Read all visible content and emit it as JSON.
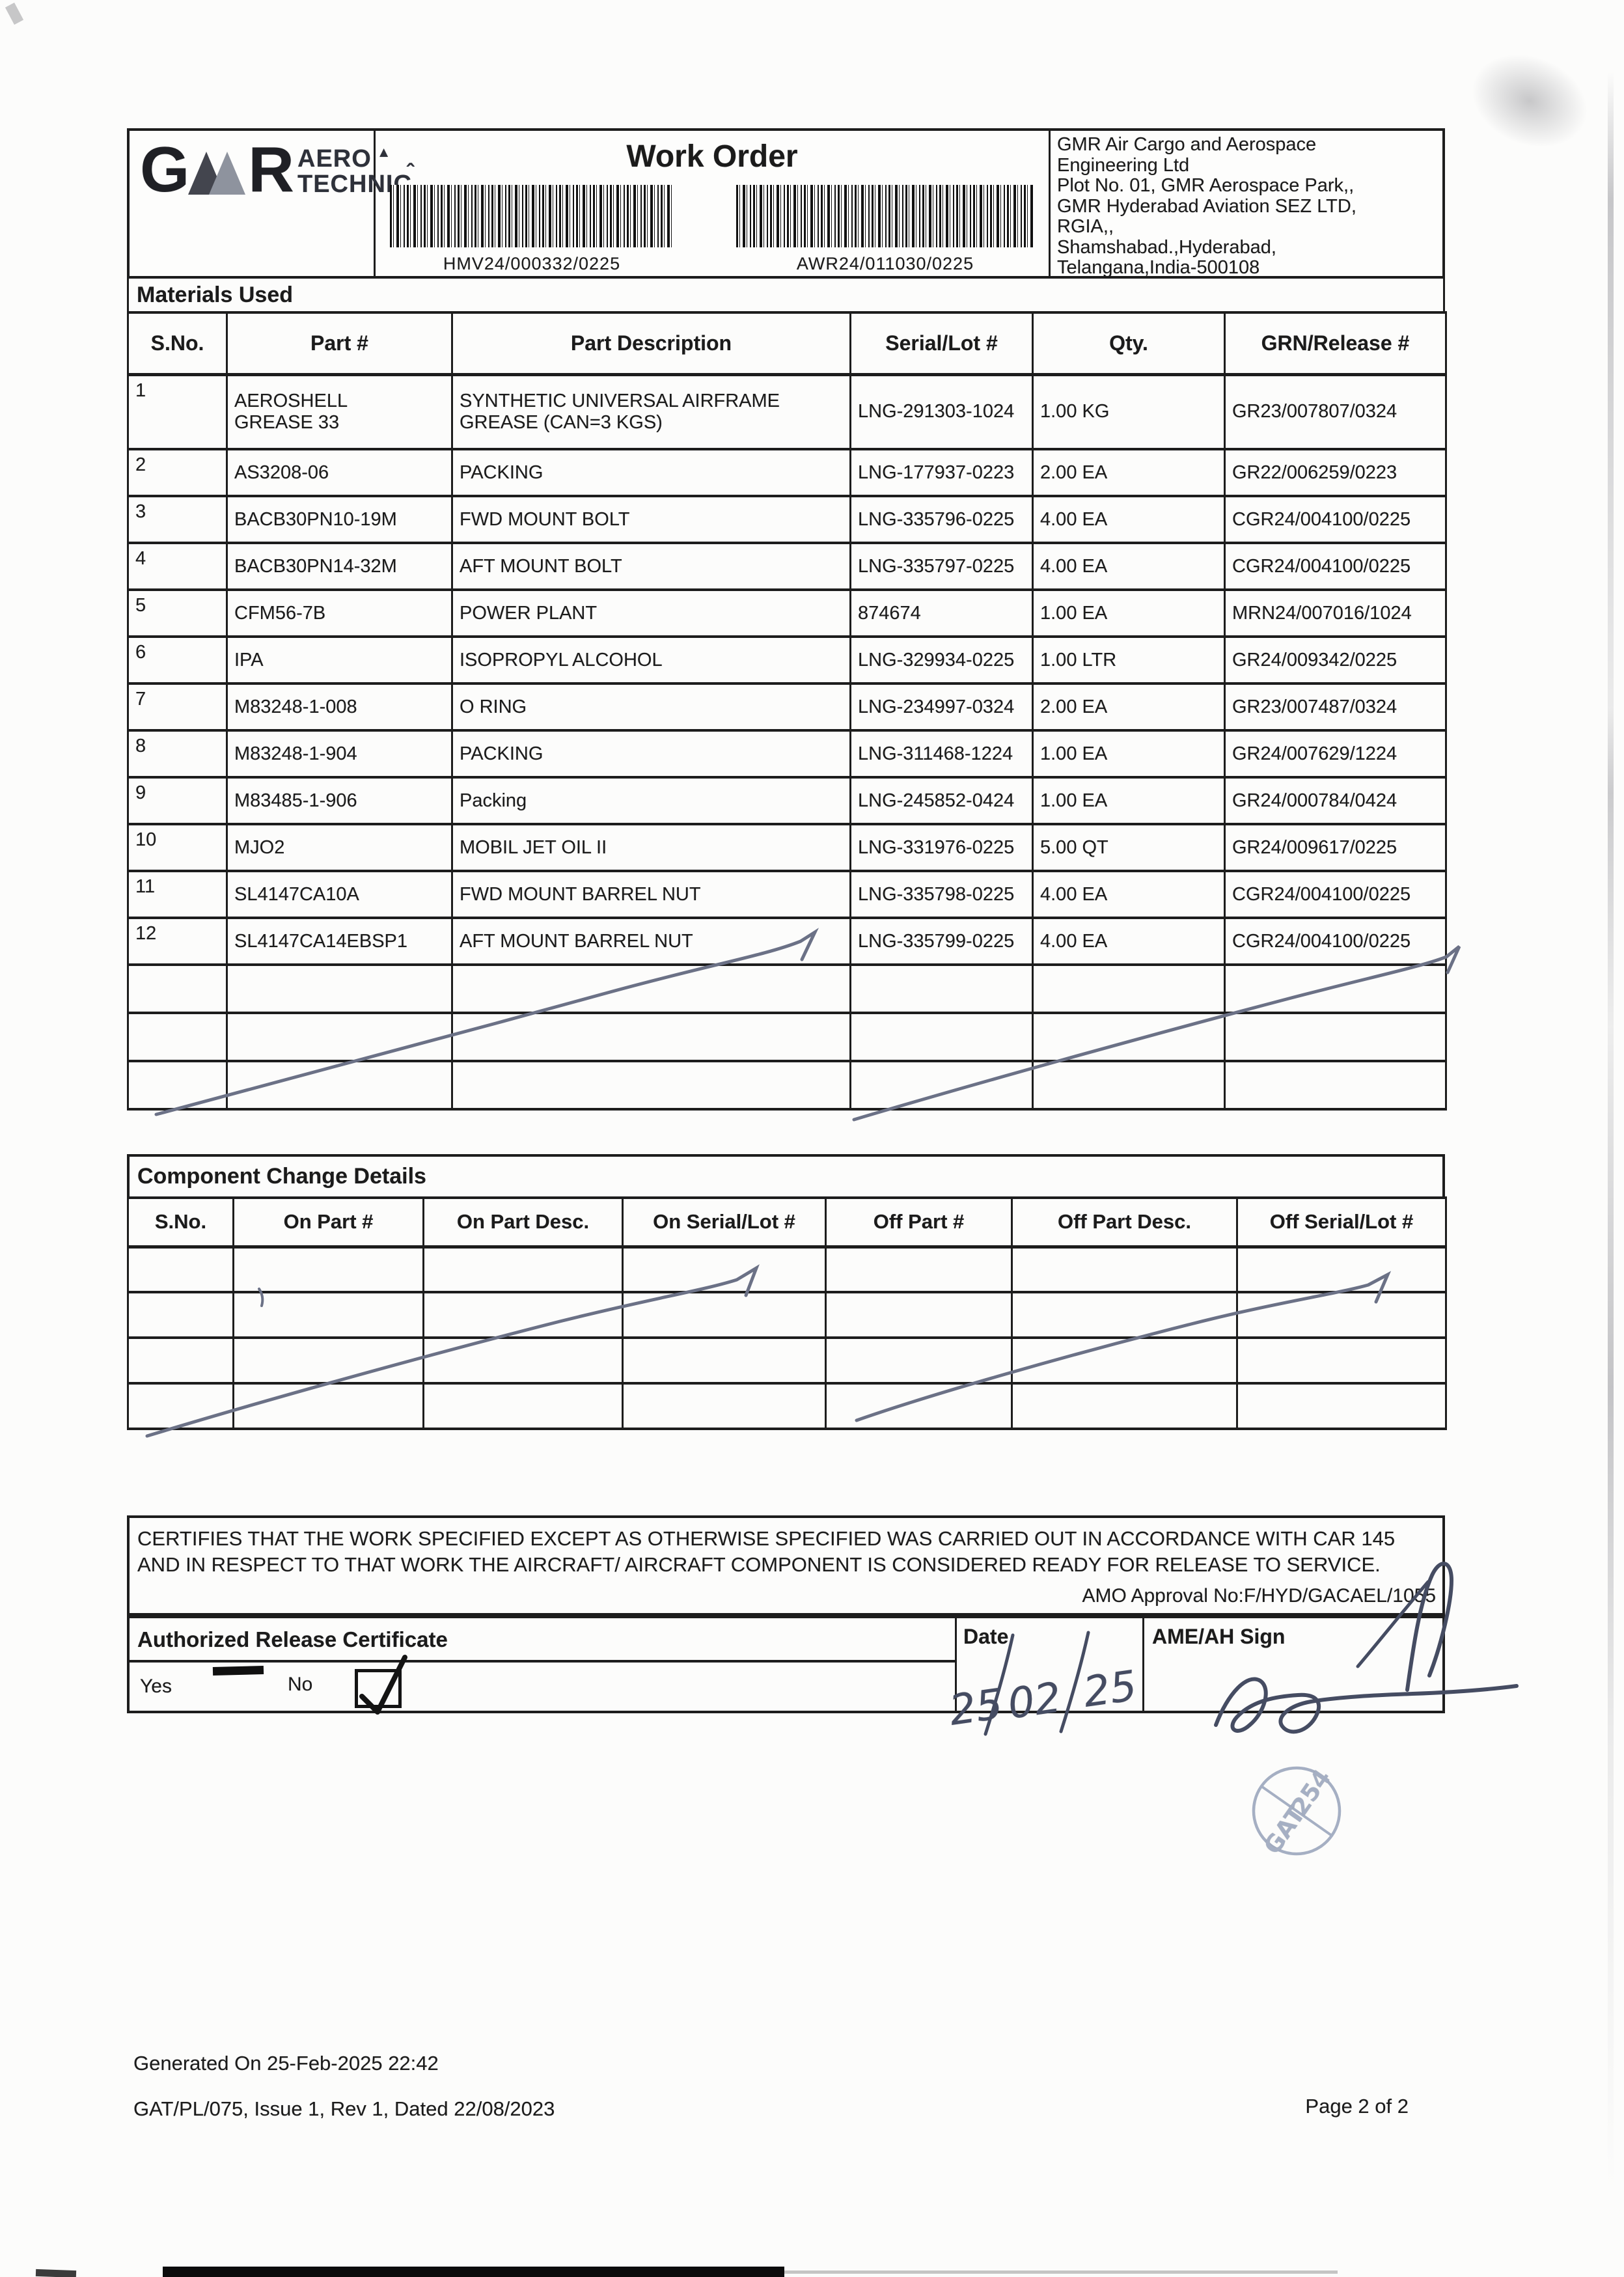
{
  "header": {
    "logo": {
      "gmr": "GMR",
      "aero": "AERO",
      "technic": "TECHNIC"
    },
    "title": "Work Order",
    "barcode1_label": "HMV24/000332/0225",
    "barcode2_label": "AWR24/011030/0225",
    "address_lines": [
      "GMR Air Cargo and Aerospace",
      "Engineering Ltd",
      "Plot No. 01, GMR Aerospace Park,,",
      "GMR Hyderabad Aviation SEZ LTD,",
      "RGIA,,",
      "Shamshabad.,Hyderabad,",
      "Telangana,India-500108"
    ]
  },
  "materials": {
    "section_title": "Materials Used",
    "columns": [
      "S.No.",
      "Part #",
      "Part Description",
      "Serial/Lot #",
      "Qty.",
      "GRN/Release #"
    ],
    "rows": [
      [
        "1",
        "AEROSHELL GREASE 33",
        "SYNTHETIC UNIVERSAL AIRFRAME GREASE (CAN=3 KGS)",
        "LNG-291303-1024",
        "1.00 KG",
        "GR23/007807/0324"
      ],
      [
        "2",
        "AS3208-06",
        "PACKING",
        "LNG-177937-0223",
        "2.00 EA",
        "GR22/006259/0223"
      ],
      [
        "3",
        "BACB30PN10-19M",
        "FWD MOUNT BOLT",
        "LNG-335796-0225",
        "4.00 EA",
        "CGR24/004100/0225"
      ],
      [
        "4",
        "BACB30PN14-32M",
        "AFT MOUNT BOLT",
        "LNG-335797-0225",
        "4.00 EA",
        "CGR24/004100/0225"
      ],
      [
        "5",
        "CFM56-7B",
        "POWER PLANT",
        "874674",
        "1.00 EA",
        "MRN24/007016/1024"
      ],
      [
        "6",
        "IPA",
        "ISOPROPYL ALCOHOL",
        "LNG-329934-0225",
        "1.00 LTR",
        "GR24/009342/0225"
      ],
      [
        "7",
        "M83248-1-008",
        "O RING",
        "LNG-234997-0324",
        "2.00 EA",
        "GR23/007487/0324"
      ],
      [
        "8",
        "M83248-1-904",
        "PACKING",
        "LNG-311468-1224",
        "1.00 EA",
        "GR24/007629/1224"
      ],
      [
        "9",
        "M83485-1-906",
        "Packing",
        "LNG-245852-0424",
        "1.00 EA",
        "GR24/000784/0424"
      ],
      [
        "10",
        "MJO2",
        "MOBIL JET OIL II",
        "LNG-331976-0225",
        "5.00 QT",
        "GR24/009617/0225"
      ],
      [
        "11",
        "SL4147CA10A",
        "FWD MOUNT BARREL NUT",
        "LNG-335798-0225",
        "4.00 EA",
        "CGR24/004100/0225"
      ],
      [
        "12",
        "SL4147CA14EBSP1",
        "AFT MOUNT BARREL NUT",
        "LNG-335799-0225",
        "4.00 EA",
        "CGR24/004100/0225"
      ]
    ],
    "empty_row_count": 3
  },
  "component_change": {
    "section_title": "Component Change Details",
    "columns": [
      "S.No.",
      "On Part #",
      "On Part Desc.",
      "On Serial/Lot #",
      "Off Part #",
      "Off Part Desc.",
      "Off Serial/Lot #"
    ],
    "empty_row_count": 4
  },
  "certification": {
    "line1": "CERTIFIES THAT THE WORK SPECIFIED EXCEPT AS OTHERWISE SPECIFIED WAS CARRIED OUT IN ACCORDANCE WITH CAR 145",
    "line2": "AND IN RESPECT TO THAT WORK THE AIRCRAFT/ AIRCRAFT COMPONENT IS CONSIDERED READY FOR RELEASE TO SERVICE.",
    "amo_approval": "AMO Approval No:F/HYD/GACAEL/1055"
  },
  "release": {
    "title": "Authorized Release Certificate",
    "yes_label": "Yes",
    "no_label": "No",
    "checkbox_checked": true,
    "date_label": "Date",
    "date_value": "25/02/25",
    "sign_label": "AME/AH Sign"
  },
  "stamp": {
    "line1": "GAT",
    "line2": "254"
  },
  "footer": {
    "generated": "Generated On 25-Feb-2025 22:42",
    "doc_ref": "GAT/PL/075, Issue 1, Rev 1, Dated 22/08/2023",
    "page": "Page 2 of 2"
  },
  "colors": {
    "ink": "#1b1b1b",
    "pen_stroke": "#6b7186",
    "pen_dark": "#454c62",
    "stamp": "#9aa5bc"
  }
}
